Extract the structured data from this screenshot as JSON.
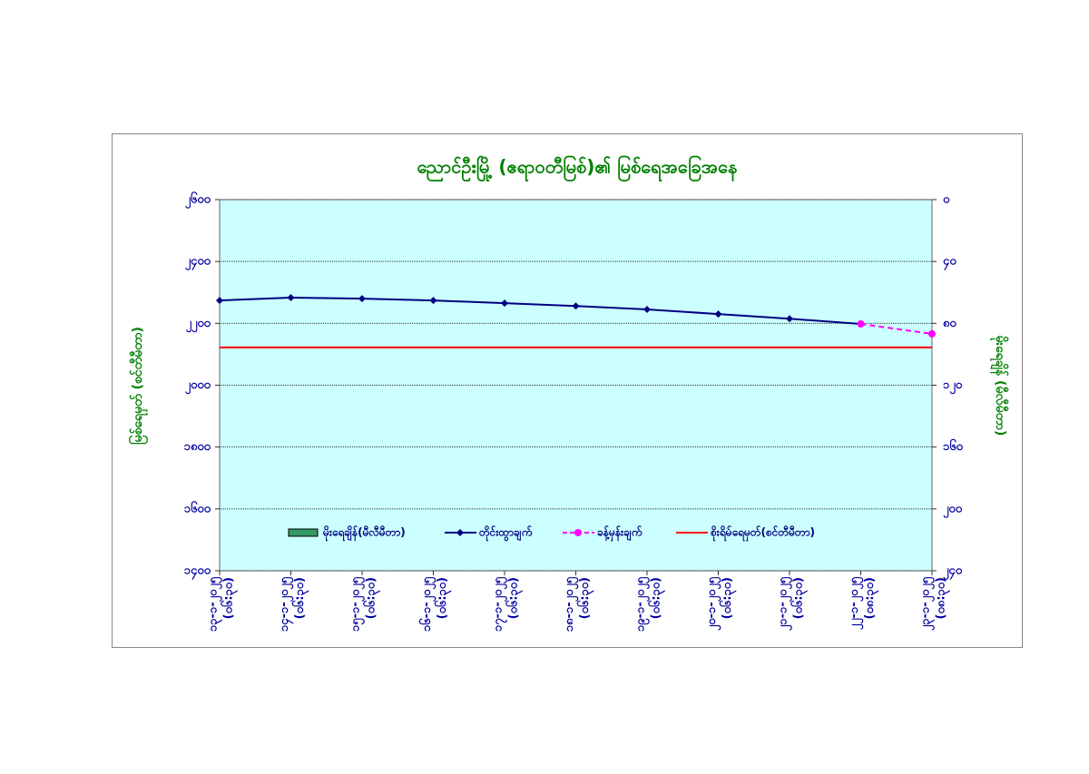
{
  "chart_data": {
    "type": "line",
    "title": "ညောင်ဦးမြို့ (ဧရာဝတီမြစ်)၏ မြစ်ရေအခြေအနေ",
    "ylabel": "မြစ်ရေမှတ် (စင်တီမီတာ)",
    "y2label": "မိုးရေချိန် (မီလီမီတာ)",
    "categories": [
      [
        "၁၃-၁-၂၀၂၅",
        "(၀၆:၃၀)"
      ],
      [
        "၁၄-၁-၂၀၂၅",
        "(၀၆:၃၀)"
      ],
      [
        "၁၅-၁-၂၀၂၅",
        "(၀၆:၃၀)"
      ],
      [
        "၁၆-၁-၂၀၂၅",
        "(၀၆:၃၀)"
      ],
      [
        "၁၇-၁-၂၀၂၅",
        "(၀၆:၃၀)"
      ],
      [
        "၁၈-၁-၂၀၂၅",
        "(၀၆:၃၀)"
      ],
      [
        "၁၉-၁-၂၀၂၅",
        "(၀၆:၃၀)"
      ],
      [
        "၂၀-၁-၂၀၂၅",
        "(၀၆:၃၀)"
      ],
      [
        "၂၁-၁-၂၀၂၅",
        "(၀၆:၃၀)"
      ],
      [
        "၂၂-၁-၂၀၂၅",
        "(၀၈:၃၀)"
      ],
      [
        "၂၃-၁-၂၀၂၅",
        "(၀၈:၃၀)"
      ]
    ],
    "series": [
      {
        "name": "မိုးရေချိန်(မီလီမီတာ)",
        "color": "#339966",
        "kind": "bar",
        "axis": "y2",
        "values": [
          0,
          0,
          0,
          0,
          0,
          0,
          0,
          0,
          0,
          0,
          0
        ]
      },
      {
        "name": "တိုင်းထွာချက်",
        "color": "#000080",
        "kind": "line",
        "marker": "diamond",
        "values": [
          2274,
          2283,
          2280,
          2274,
          2265,
          2256,
          2245,
          2230,
          2215,
          2198,
          null
        ]
      },
      {
        "name": "ခန့်မှန်းချက်",
        "color": "#ff00ff",
        "kind": "line",
        "marker": "circle",
        "dashed": true,
        "values": [
          null,
          null,
          null,
          null,
          null,
          null,
          null,
          null,
          null,
          2198,
          2166
        ]
      },
      {
        "name": "စိုးရိမ်ရေမှတ်(စင်တီမီတာ)",
        "color": "#ff0000",
        "kind": "line",
        "values": [
          2122,
          2122,
          2122,
          2122,
          2122,
          2122,
          2122,
          2122,
          2122,
          2122,
          2122
        ]
      }
    ],
    "ylim": [
      1400,
      2600
    ],
    "yticks": [
      {
        "value": 1400,
        "label": "၁၄၀၀"
      },
      {
        "value": 1600,
        "label": "၁၆၀၀"
      },
      {
        "value": 1800,
        "label": "၁၈၀၀"
      },
      {
        "value": 2000,
        "label": "၂၀၀၀"
      },
      {
        "value": 2200,
        "label": "၂၂၀၀"
      },
      {
        "value": 2400,
        "label": "၂၄၀၀"
      },
      {
        "value": 2600,
        "label": "၂၆၀၀"
      }
    ],
    "y2lim": [
      240,
      0
    ],
    "y2ticks": [
      {
        "value": 0,
        "label": "၀"
      },
      {
        "value": 40,
        "label": "၄၀"
      },
      {
        "value": 80,
        "label": "၈၀"
      },
      {
        "value": 120,
        "label": "၁၂၀"
      },
      {
        "value": 160,
        "label": "၁၆၀"
      },
      {
        "value": 200,
        "label": "၂၀၀"
      },
      {
        "value": 240,
        "label": "၂၄၀"
      }
    ],
    "grid": true,
    "plot_background": "#ccffff"
  }
}
